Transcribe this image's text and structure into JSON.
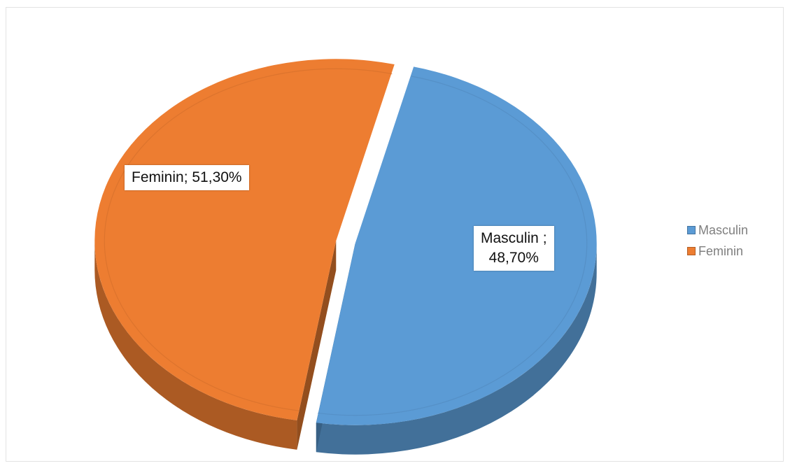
{
  "chart_data": {
    "type": "pie",
    "title": "",
    "series": [
      {
        "name": "Masculin",
        "label": "Masculin ;",
        "value_label": "48,70%",
        "value": 48.7,
        "color": "#5b9bd5"
      },
      {
        "name": "Feminin",
        "label": "Feminin;",
        "value_label": "51,30%",
        "value": 51.3,
        "color": "#ed7d31"
      }
    ],
    "legend": {
      "position": "right",
      "entries": [
        "Masculin",
        "Feminin"
      ]
    },
    "style": "3d-exploded"
  }
}
